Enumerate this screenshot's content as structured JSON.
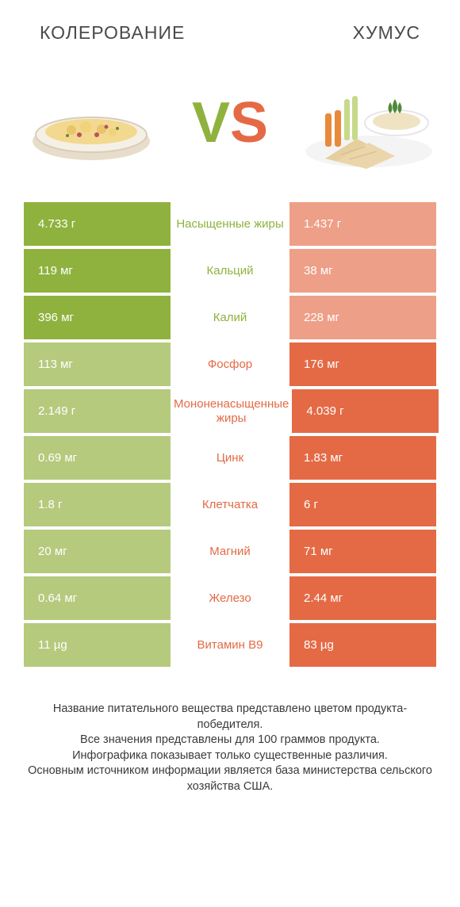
{
  "colors": {
    "green_strong": "#8fb23e",
    "green_soft": "#b5ca7d",
    "orange_strong": "#e46a45",
    "orange_soft": "#ee9f87",
    "text": "#4a4a4a",
    "bg": "#ffffff"
  },
  "header": {
    "left": "КОЛЕРОВАНИЕ",
    "right": "ХУМУС",
    "vs_v": "V",
    "vs_s": "S"
  },
  "rows": [
    {
      "label": "Насыщенные жиры",
      "left": "4.733 г",
      "right": "1.437 г",
      "winner": "left"
    },
    {
      "label": "Кальций",
      "left": "119 мг",
      "right": "38 мг",
      "winner": "left"
    },
    {
      "label": "Калий",
      "left": "396 мг",
      "right": "228 мг",
      "winner": "left"
    },
    {
      "label": "Фосфор",
      "left": "113 мг",
      "right": "176 мг",
      "winner": "right"
    },
    {
      "label": "Мононенасыщенные жиры",
      "left": "2.149 г",
      "right": "4.039 г",
      "winner": "right"
    },
    {
      "label": "Цинк",
      "left": "0.69 мг",
      "right": "1.83 мг",
      "winner": "right"
    },
    {
      "label": "Клетчатка",
      "left": "1.8 г",
      "right": "6 г",
      "winner": "right"
    },
    {
      "label": "Магний",
      "left": "20 мг",
      "right": "71 мг",
      "winner": "right"
    },
    {
      "label": "Железо",
      "left": "0.64 мг",
      "right": "2.44 мг",
      "winner": "right"
    },
    {
      "label": "Витамин B9",
      "left": "11 µg",
      "right": "83 µg",
      "winner": "right"
    }
  ],
  "footnote": "Название питательного вещества представлено цветом продукта-победителя.\nВсе значения представлены для 100 граммов продукта.\nИнфографика показывает только существенные различия.\nОсновным источником информации является база министерства сельского хозяйства США."
}
